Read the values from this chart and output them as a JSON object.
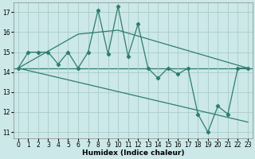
{
  "x": [
    0,
    1,
    2,
    3,
    4,
    5,
    6,
    7,
    8,
    9,
    10,
    11,
    12,
    13,
    14,
    15,
    16,
    17,
    18,
    19,
    20,
    21,
    22,
    23
  ],
  "y_main": [
    14.2,
    15.0,
    15.0,
    15.0,
    14.4,
    15.0,
    14.2,
    15.0,
    17.1,
    14.9,
    17.3,
    14.8,
    16.4,
    14.2,
    13.7,
    14.2,
    13.9,
    14.2,
    11.9,
    11.0,
    12.3,
    11.9,
    14.2,
    14.2
  ],
  "trend1_x": [
    0,
    6,
    10,
    23
  ],
  "trend1_y": [
    14.2,
    15.9,
    16.1,
    14.2
  ],
  "trend2_x": [
    0,
    23
  ],
  "trend2_y": [
    14.2,
    11.5
  ],
  "hline_y": 14.2,
  "line_color": "#2e7d6e",
  "bg_color": "#cce8e8",
  "grid_color": "#aacccc",
  "xlabel": "Humidex (Indice chaleur)",
  "ylim": [
    10.7,
    17.5
  ],
  "xlim": [
    -0.5,
    23.5
  ],
  "yticks": [
    11,
    12,
    13,
    14,
    15,
    16,
    17
  ],
  "xticks": [
    0,
    1,
    2,
    3,
    4,
    5,
    6,
    7,
    8,
    9,
    10,
    11,
    12,
    13,
    14,
    15,
    16,
    17,
    18,
    19,
    20,
    21,
    22,
    23
  ]
}
